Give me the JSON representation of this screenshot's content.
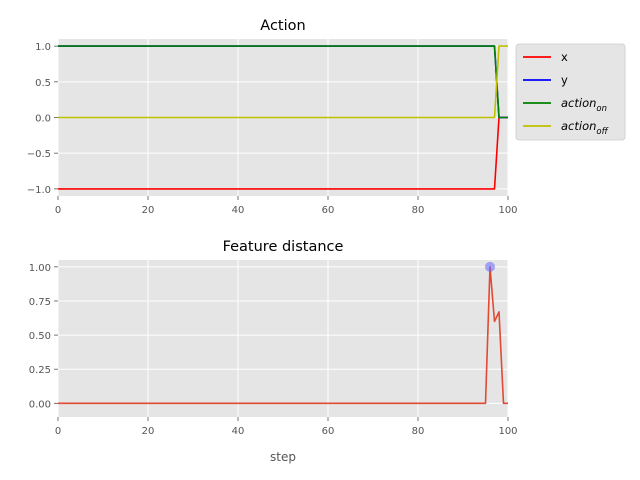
{
  "chart_data": [
    {
      "type": "line",
      "title": "Action",
      "xlabel": "",
      "ylabel": "",
      "xlim": [
        0,
        100
      ],
      "ylim": [
        -1.1,
        1.1
      ],
      "xticks": [
        0,
        20,
        40,
        60,
        80,
        100
      ],
      "yticks": [
        -1.0,
        -0.5,
        0.0,
        0.5,
        1.0
      ],
      "xtick_labels": [
        "0",
        "20",
        "40",
        "60",
        "80",
        "100"
      ],
      "ytick_labels": [
        "−1.0",
        "−0.5",
        "0.0",
        "0.5",
        "1.0"
      ],
      "grid": true,
      "legend": "outside-right",
      "series": [
        {
          "name": "x",
          "color": "#ff0000",
          "x": [
            0,
            97,
            98,
            100
          ],
          "y": [
            -1,
            -1,
            0,
            0
          ]
        },
        {
          "name": "y",
          "color": "#0000ff",
          "x": [
            0,
            97,
            98,
            100
          ],
          "y": [
            1,
            1,
            0,
            0
          ]
        },
        {
          "name": "action",
          "name_sub": "on",
          "color": "#008000",
          "x": [
            0,
            97,
            98,
            100
          ],
          "y": [
            1,
            1,
            0,
            0
          ]
        },
        {
          "name": "action",
          "name_sub": "off",
          "color": "#bfbf00",
          "x": [
            0,
            97,
            98,
            100
          ],
          "y": [
            0,
            0,
            1,
            1
          ]
        }
      ]
    },
    {
      "type": "line",
      "title": "Feature distance",
      "xlabel": "step",
      "ylabel": "",
      "xlim": [
        0,
        100
      ],
      "ylim": [
        -0.1,
        1.05
      ],
      "xticks": [
        0,
        20,
        40,
        60,
        80,
        100
      ],
      "yticks": [
        0.0,
        0.25,
        0.5,
        0.75,
        1.0
      ],
      "xtick_labels": [
        "0",
        "20",
        "40",
        "60",
        "80",
        "100"
      ],
      "ytick_labels": [
        "0.00",
        "0.25",
        "0.50",
        "0.75",
        "1.00"
      ],
      "grid": true,
      "series": [
        {
          "name": "",
          "color": "#e24a33",
          "x": [
            0,
            95,
            96,
            97,
            98,
            99,
            100
          ],
          "y": [
            0,
            0,
            1.0,
            0.6,
            0.67,
            0,
            0
          ]
        }
      ],
      "markers": [
        {
          "x": 96,
          "y": 1.0,
          "color": "#6666ff"
        }
      ]
    }
  ]
}
